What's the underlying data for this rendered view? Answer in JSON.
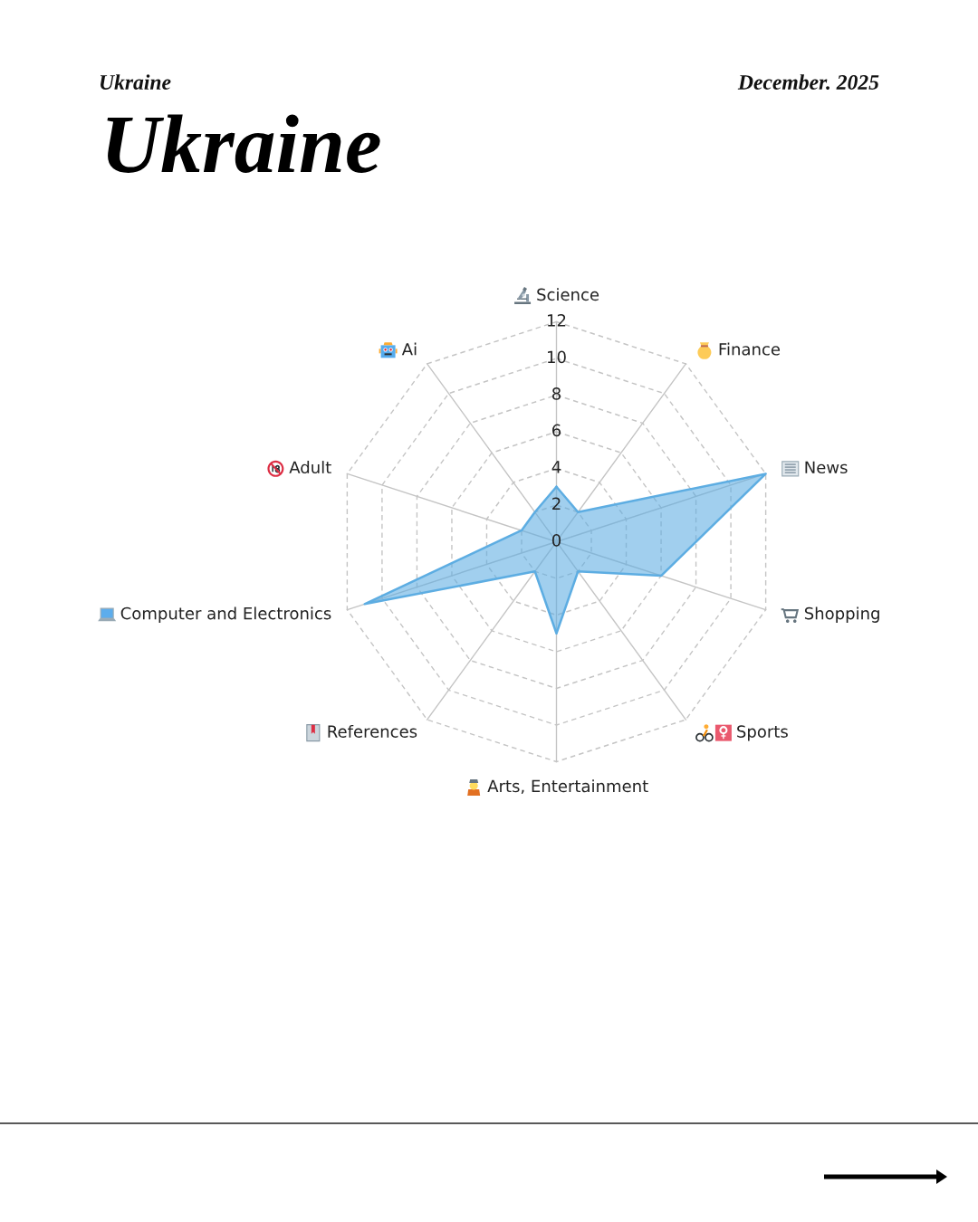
{
  "chart_data": {
    "type": "radar",
    "title": "Ukraine",
    "subtitle": "Ukraine",
    "annotations": [
      "December. 2025"
    ],
    "categories": [
      "Science",
      "Finance",
      "News",
      "Shopping",
      "Sports",
      "Arts, Entertainment",
      "References",
      "Computer and Electronics",
      "Adult",
      "Ai"
    ],
    "series": [
      {
        "color": "#5dade2",
        "values": [
          3,
          2,
          12,
          6,
          2,
          5,
          2,
          11,
          2,
          2
        ]
      }
    ],
    "ylim": [
      0,
      12
    ],
    "yticks": [
      0,
      2,
      4,
      6,
      8,
      10,
      12
    ],
    "grid": true,
    "line_style": "solid"
  }
}
